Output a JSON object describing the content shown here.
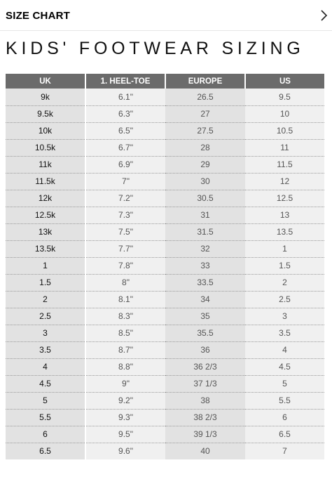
{
  "header": {
    "title": "SIZE CHART",
    "chevron_icon": "chevron-right-icon"
  },
  "heading": "KIDS' FOOTWEAR SIZING",
  "table": {
    "columns": [
      "UK",
      "1. HEEL-TOE",
      "EUROPE",
      "US"
    ],
    "rows": [
      [
        "9k",
        "6.1\"",
        "26.5",
        "9.5"
      ],
      [
        "9.5k",
        "6.3\"",
        "27",
        "10"
      ],
      [
        "10k",
        "6.5\"",
        "27.5",
        "10.5"
      ],
      [
        "10.5k",
        "6.7\"",
        "28",
        "11"
      ],
      [
        "11k",
        "6.9\"",
        "29",
        "11.5"
      ],
      [
        "11.5k",
        "7\"",
        "30",
        "12"
      ],
      [
        "12k",
        "7.2\"",
        "30.5",
        "12.5"
      ],
      [
        "12.5k",
        "7.3\"",
        "31",
        "13"
      ],
      [
        "13k",
        "7.5\"",
        "31.5",
        "13.5"
      ],
      [
        "13.5k",
        "7.7\"",
        "32",
        "1"
      ],
      [
        "1",
        "7.8\"",
        "33",
        "1.5"
      ],
      [
        "1.5",
        "8\"",
        "33.5",
        "2"
      ],
      [
        "2",
        "8.1\"",
        "34",
        "2.5"
      ],
      [
        "2.5",
        "8.3\"",
        "35",
        "3"
      ],
      [
        "3",
        "8.5\"",
        "35.5",
        "3.5"
      ],
      [
        "3.5",
        "8.7\"",
        "36",
        "4"
      ],
      [
        "4",
        "8.8\"",
        "36 2/3",
        "4.5"
      ],
      [
        "4.5",
        "9\"",
        "37 1/3",
        "5"
      ],
      [
        "5",
        "9.2\"",
        "38",
        "5.5"
      ],
      [
        "5.5",
        "9.3\"",
        "38 2/3",
        "6"
      ],
      [
        "6",
        "9.5\"",
        "39 1/3",
        "6.5"
      ],
      [
        "6.5",
        "9.6\"",
        "40",
        "7"
      ]
    ]
  }
}
